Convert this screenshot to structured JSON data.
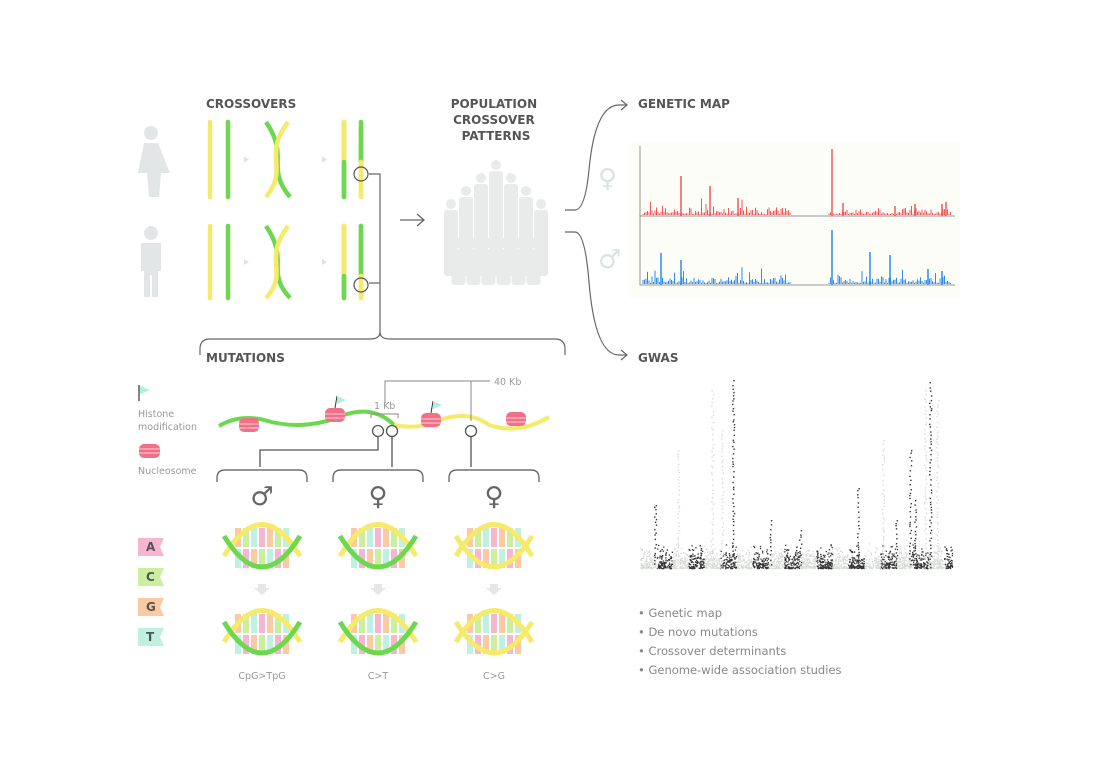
{
  "crossovers": {
    "title": "CROSSOVERS"
  },
  "population": {
    "title_lines": [
      "POPULATION",
      "CROSSOVER",
      "PATTERNS"
    ]
  },
  "genetic_map": {
    "title": "GENETIC MAP",
    "female_symbol": "♀",
    "male_symbol": "♂"
  },
  "gwas": {
    "title": "GWAS"
  },
  "mutations": {
    "title": "MUTATIONS",
    "legend": {
      "histone_line1": "Histone",
      "histone_line2": "modification",
      "nucleosome": "Nucleosome"
    },
    "distance_40kb": "40 Kb",
    "distance_1kb": "1 Kb",
    "groups": [
      {
        "symbol": "♂",
        "label": "CpG>TpG"
      },
      {
        "symbol": "♀",
        "label": "C>T"
      },
      {
        "symbol": "♀",
        "label": "C>G"
      }
    ],
    "bases": [
      {
        "letter": "A",
        "color": "#f7b6cf"
      },
      {
        "letter": "C",
        "color": "#c9ef9f"
      },
      {
        "letter": "G",
        "color": "#fbcaa2"
      },
      {
        "letter": "T",
        "color": "#bff0e2"
      }
    ]
  },
  "bullets": [
    "Genetic map",
    "De novo mutations",
    "Crossover determinants",
    "Genome-wide association studies"
  ],
  "colors": {
    "yellow": "#f5ea6a",
    "green": "#6dd84f",
    "female": "#f0585e",
    "male": "#2f8ce8",
    "gwas_dark": "#333333",
    "gwas_light": "#d6dad6"
  }
}
